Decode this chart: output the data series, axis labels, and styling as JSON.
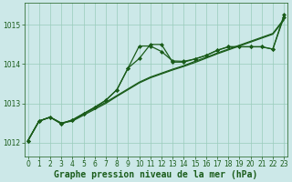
{
  "background_color": "#cce8e8",
  "line_color": "#1a5c1a",
  "grid_color": "#99ccbb",
  "xlabel": "Graphe pression niveau de la mer (hPa)",
  "xlabel_fontsize": 7,
  "ytick_labels": [
    "1012",
    "1013",
    "1014",
    "1015"
  ],
  "yticks": [
    1012,
    1013,
    1014,
    1015
  ],
  "xticks": [
    0,
    1,
    2,
    3,
    4,
    5,
    6,
    7,
    8,
    9,
    10,
    11,
    12,
    13,
    14,
    15,
    16,
    17,
    18,
    19,
    20,
    21,
    22,
    23
  ],
  "xlim": [
    -0.3,
    23.3
  ],
  "ylim": [
    1011.65,
    1015.55
  ],
  "series1": [
    1012.05,
    1012.55,
    1012.65,
    1012.5,
    1012.55,
    1012.7,
    1012.85,
    1013.0,
    1013.18,
    1013.35,
    1013.52,
    1013.65,
    1013.75,
    1013.85,
    1013.94,
    1014.04,
    1014.15,
    1014.26,
    1014.36,
    1014.46,
    1014.56,
    1014.66,
    1014.76,
    1015.12
  ],
  "series2": [
    1012.05,
    1012.55,
    1012.65,
    1012.5,
    1012.57,
    1012.73,
    1012.88,
    1013.03,
    1013.2,
    1013.37,
    1013.54,
    1013.67,
    1013.77,
    1013.87,
    1013.96,
    1014.07,
    1014.17,
    1014.28,
    1014.38,
    1014.48,
    1014.58,
    1014.68,
    1014.78,
    1015.15
  ],
  "series3": [
    1012.05,
    1012.55,
    1012.65,
    1012.48,
    1012.58,
    1012.74,
    1012.9,
    1013.08,
    1013.35,
    1013.9,
    1014.46,
    1014.46,
    1014.32,
    1014.08,
    1014.07,
    1014.13,
    1014.22,
    1014.35,
    1014.44,
    1014.44,
    1014.44,
    1014.44,
    1014.38,
    1015.2
  ],
  "series4": [
    1012.05,
    1012.55,
    1012.65,
    1012.48,
    1012.58,
    1012.74,
    1012.9,
    1013.08,
    1013.35,
    1013.9,
    1014.14,
    1014.5,
    1014.5,
    1014.05,
    1014.05,
    1014.13,
    1014.22,
    1014.35,
    1014.44,
    1014.44,
    1014.44,
    1014.44,
    1014.38,
    1015.25
  ]
}
